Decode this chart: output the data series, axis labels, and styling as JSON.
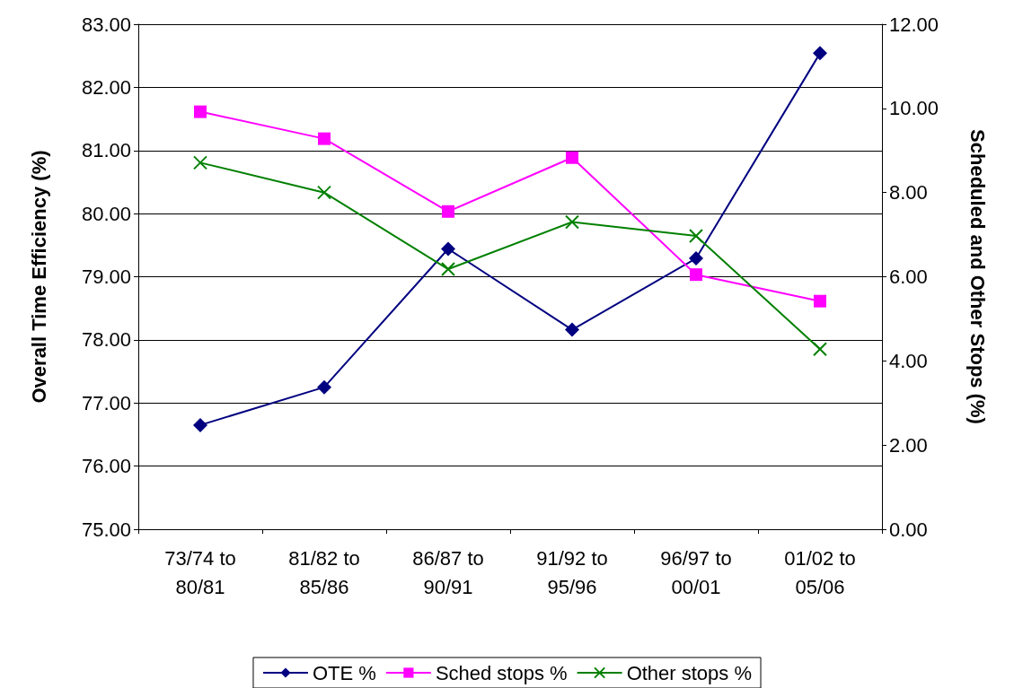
{
  "chart_data": {
    "type": "line",
    "ylabel": "Overall Time Efficiency (%)",
    "y2label": "Scheduled and Other Stops (%)",
    "categories": [
      "73/74 to 80/81",
      "81/82 to 85/86",
      "86/87 to 90/91",
      "91/92 to 95/96",
      "96/97 to 00/01",
      "01/02 to 05/06"
    ],
    "series": [
      {
        "name": "OTE %",
        "color": "#000080",
        "marker": "diamond",
        "values": [
          76.65,
          77.25,
          79.44,
          78.16,
          79.29,
          82.54
        ]
      },
      {
        "name": "Sched stops %",
        "color": "#ff00ff",
        "marker": "square",
        "axis": "y2",
        "values": [
          9.92,
          9.28,
          7.55,
          8.83,
          6.05,
          5.42
        ]
      },
      {
        "name": "Other stops %",
        "color": "#008000",
        "marker": "cross",
        "axis": "y2",
        "values": [
          8.71,
          8.0,
          6.18,
          7.3,
          6.97,
          4.28
        ]
      }
    ],
    "ylim": [
      75,
      83
    ],
    "yticks": [
      {
        "value": 75,
        "label": "75.00"
      },
      {
        "value": 76,
        "label": "76.00"
      },
      {
        "value": 77,
        "label": "77.00"
      },
      {
        "value": 78,
        "label": "78.00"
      },
      {
        "value": 79,
        "label": "79.00"
      },
      {
        "value": 80,
        "label": "80.00"
      },
      {
        "value": 81,
        "label": "81.00"
      },
      {
        "value": 82,
        "label": "82.00"
      },
      {
        "value": 83,
        "label": "83.00"
      }
    ],
    "y2lim": [
      0,
      12
    ],
    "y2ticks": [
      {
        "value": 0,
        "label": "0.00"
      },
      {
        "value": 2,
        "label": "2.00"
      },
      {
        "value": 4,
        "label": "4.00"
      },
      {
        "value": 6,
        "label": "6.00"
      },
      {
        "value": 8,
        "label": "8.00"
      },
      {
        "value": 10,
        "label": "10.00"
      },
      {
        "value": 12,
        "label": "12.00"
      }
    ],
    "grid": "y",
    "legend": "bottom",
    "line_style": "solid"
  }
}
